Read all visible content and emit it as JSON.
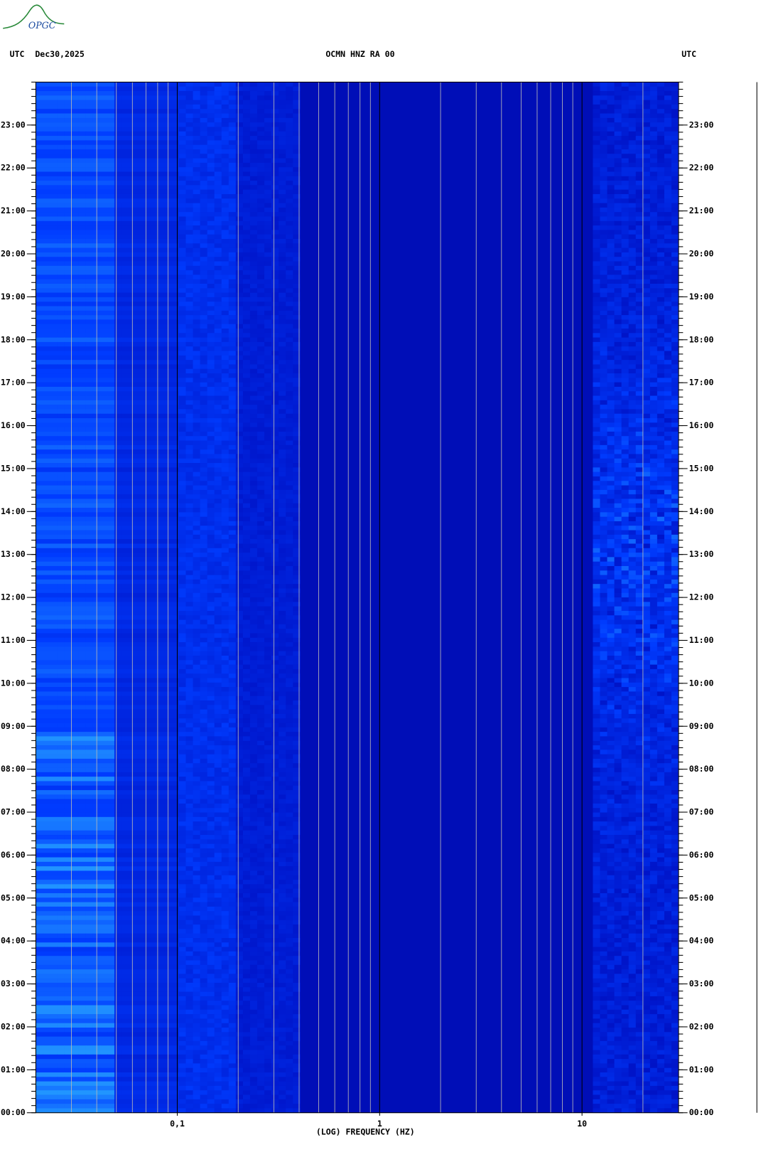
{
  "chart_data": {
    "type": "spectrogram",
    "logo": "OPGC",
    "title": "OCMN HNZ RA 00",
    "left_header": "UTC",
    "date": "Dec30,2025",
    "right_header": "UTC",
    "xlabel": "(LOG) FREQUENCY (HZ)",
    "xscale": "log",
    "xlim": [
      0.02,
      30
    ],
    "xticks": [
      {
        "value": 0.1,
        "label": "0,1"
      },
      1,
      10
    ],
    "ylim": [
      0,
      24
    ],
    "yticks": [
      {
        "value": 0,
        "label": "00:00"
      },
      {
        "value": 1,
        "label": "01:00"
      },
      {
        "value": 2,
        "label": "02:00"
      },
      {
        "value": 3,
        "label": "03:00"
      },
      {
        "value": 4,
        "label": "04:00"
      },
      {
        "value": 5,
        "label": "05:00"
      },
      {
        "value": 6,
        "label": "06:00"
      },
      {
        "value": 7,
        "label": "07:00"
      },
      {
        "value": 8,
        "label": "08:00"
      },
      {
        "value": 9,
        "label": "09:00"
      },
      {
        "value": 10,
        "label": "10:00"
      },
      {
        "value": 11,
        "label": "11:00"
      },
      {
        "value": 12,
        "label": "12:00"
      },
      {
        "value": 13,
        "label": "13:00"
      },
      {
        "value": 14,
        "label": "14:00"
      },
      {
        "value": 15,
        "label": "15:00"
      },
      {
        "value": 16,
        "label": "16:00"
      },
      {
        "value": 17,
        "label": "17:00"
      },
      {
        "value": 18,
        "label": "18:00"
      },
      {
        "value": 19,
        "label": "19:00"
      },
      {
        "value": 20,
        "label": "20:00"
      },
      {
        "value": 21,
        "label": "21:00"
      },
      {
        "value": 22,
        "label": "22:00"
      },
      {
        "value": 23,
        "label": "23:00"
      }
    ],
    "grid": true
  }
}
